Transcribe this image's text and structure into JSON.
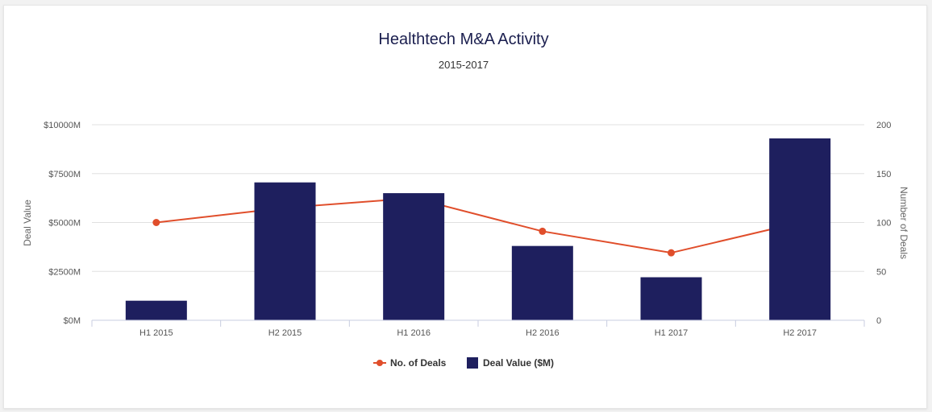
{
  "chart_data": {
    "type": "bar",
    "title": "Healthtech M&A Activity",
    "subtitle": "2015-2017",
    "categories": [
      "H1 2015",
      "H2 2015",
      "H1 2016",
      "H2 2016",
      "H1 2017",
      "H2 2017"
    ],
    "series": [
      {
        "name": "Deal Value ($M)",
        "type": "bar",
        "axis": "left",
        "color": "#1e1f5e",
        "values": [
          1000,
          7050,
          6500,
          3800,
          2200,
          9300
        ]
      },
      {
        "name": "No. of Deals",
        "type": "line",
        "axis": "right",
        "color": "#e04e2b",
        "values": [
          100,
          115,
          125,
          91,
          69,
          100
        ]
      }
    ],
    "y_left": {
      "label": "Deal Value",
      "ylim": [
        0,
        10000
      ],
      "ticks": [
        "$0M",
        "$2500M",
        "$5000M",
        "$7500M",
        "$10000M"
      ],
      "tick_values": [
        0,
        2500,
        5000,
        7500,
        10000
      ]
    },
    "y_right": {
      "label": "Number of Deals",
      "ylim": [
        0,
        200
      ],
      "ticks": [
        "0",
        "50",
        "100",
        "150",
        "200"
      ],
      "tick_values": [
        0,
        50,
        100,
        150,
        200
      ]
    },
    "grid": true,
    "legend": {
      "placement": "bottom",
      "items": [
        {
          "label": "No. of Deals",
          "marker": "line-dot",
          "color": "#e04e2b"
        },
        {
          "label": "Deal Value ($M)",
          "marker": "square",
          "color": "#1e1f5e"
        }
      ]
    }
  }
}
